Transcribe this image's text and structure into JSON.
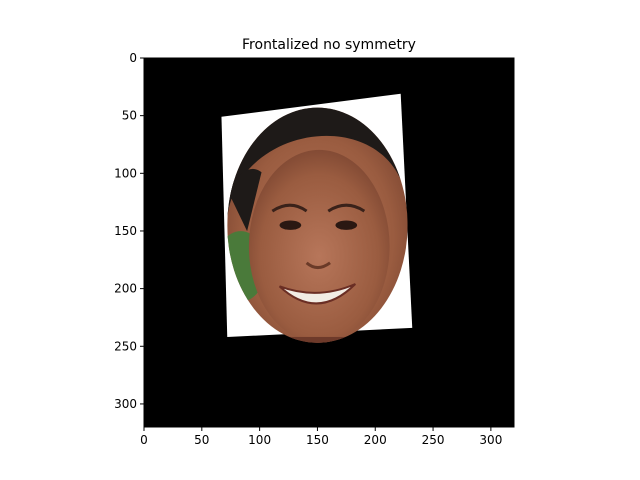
{
  "chart_data": {
    "type": "image",
    "title": "Frontalized no symmetry",
    "xlabel": "",
    "ylabel": "",
    "xlim": [
      0,
      320
    ],
    "ylim": [
      320,
      0
    ],
    "x_ticks": [
      0,
      50,
      100,
      150,
      200,
      250,
      300
    ],
    "y_ticks": [
      0,
      50,
      100,
      150,
      200,
      250,
      300
    ],
    "grid": false,
    "background_color": "#000000",
    "image_content": {
      "subject": "frontalized face in an elliptical mask",
      "patch_color": "#ffffff",
      "patch_corners": [
        [
          67,
          51
        ],
        [
          222,
          31
        ],
        [
          232,
          234
        ],
        [
          72,
          242
        ]
      ],
      "face_center": [
        150,
        145
      ],
      "face_radii": [
        78,
        102
      ],
      "hair_color": "#1e1a18",
      "skin_color": "#a8684a",
      "foliage_color": "#4a7a3a"
    }
  }
}
